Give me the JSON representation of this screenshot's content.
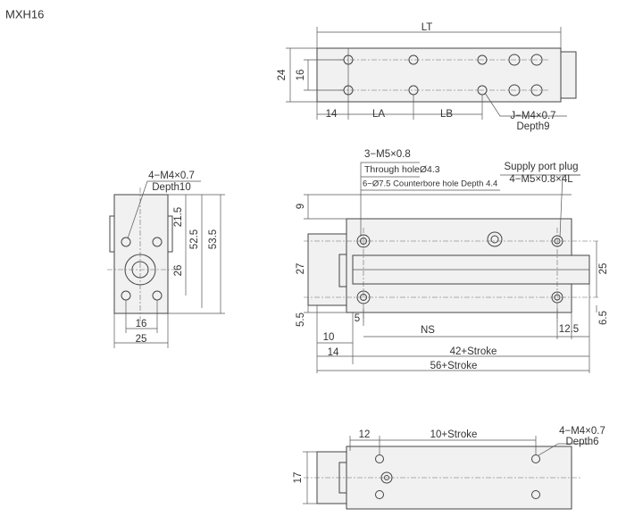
{
  "title": "MXH16",
  "top_view": {
    "labels": [
      "LT",
      "24",
      "16",
      "14",
      "LA",
      "LB",
      "J−M4×0.7",
      "Depth9"
    ]
  },
  "side_view": {
    "labels": [
      "4−M4×0.7",
      "Depth10",
      "21.5",
      "52.5",
      "53.5",
      "26",
      "16",
      "25"
    ]
  },
  "front_view": {
    "labels": [
      "3−M5×0.8",
      "Through holeØ4.3",
      "6−Ø7.5 Counterbore hole Depth 4.4",
      "Supply port plug",
      "4−M5×0.8×4L",
      "9",
      "27",
      "25",
      "5.5",
      "5",
      "6.5",
      "NS",
      "12.5",
      "10",
      "14",
      "42+Stroke",
      "56+Stroke"
    ]
  },
  "bottom_view": {
    "labels": [
      "12",
      "10+Stroke",
      "4−M4×0.7",
      "Depth6",
      "17"
    ]
  }
}
